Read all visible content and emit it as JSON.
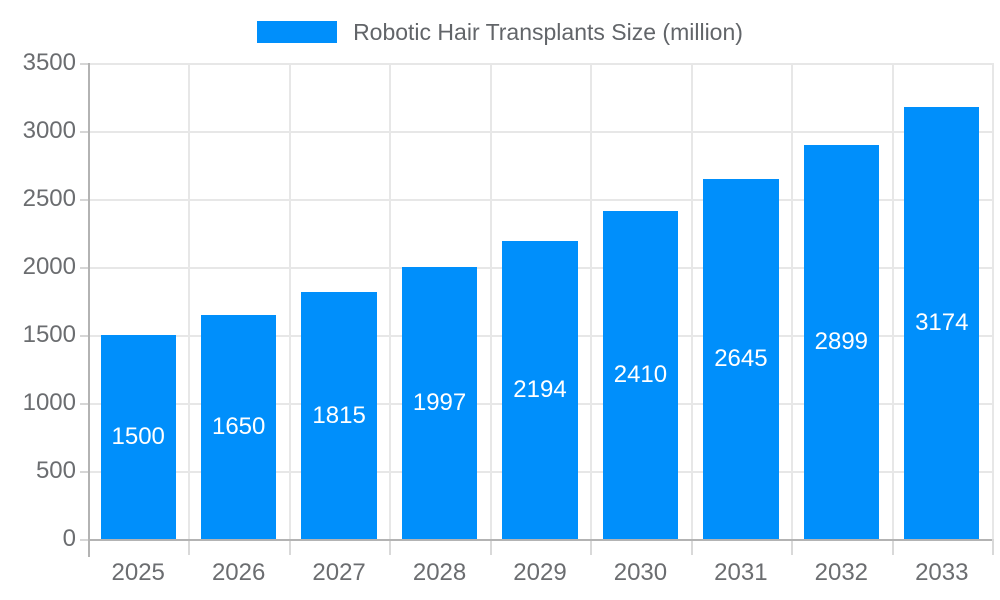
{
  "chart_data": {
    "type": "bar",
    "title": "Robotic Hair Transplants Size (million)",
    "categories": [
      "2025",
      "2026",
      "2027",
      "2028",
      "2029",
      "2030",
      "2031",
      "2032",
      "2033"
    ],
    "values": [
      1500,
      1650,
      1815,
      1997,
      2194,
      2410,
      2645,
      2899,
      3174
    ],
    "series": [
      {
        "name": "Robotic Hair Transplants Size (million)",
        "values": [
          1500,
          1650,
          1815,
          1997,
          2194,
          2410,
          2645,
          2899,
          3174
        ]
      }
    ],
    "xlabel": "",
    "ylabel": "",
    "ylim": [
      0,
      3500
    ],
    "yticks": [
      0,
      500,
      1000,
      1500,
      2000,
      2500,
      3000,
      3500
    ],
    "grid": true,
    "legend_position": "top",
    "value_labels_inside": true
  },
  "colors": {
    "bar": "#008FFB",
    "value_label": "#FFFFFF"
  },
  "legend": {
    "label": "Robotic Hair Transplants Size (million)",
    "swatch_color": "#008FFB"
  }
}
